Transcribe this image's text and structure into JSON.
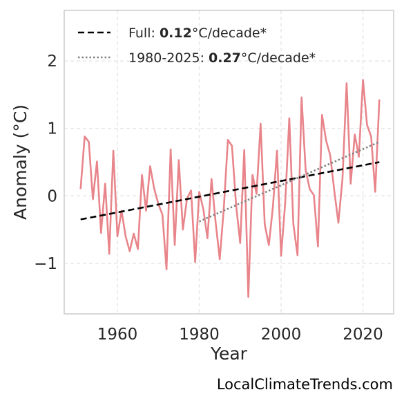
{
  "chart_data": {
    "type": "line",
    "xlabel": "Year",
    "ylabel": "Anomaly (°C)",
    "xlim": [
      1947,
      2027.5
    ],
    "ylim": [
      -1.75,
      2.75
    ],
    "x_ticks": [
      1960,
      1980,
      2000,
      2020
    ],
    "x_tick_labels": [
      "1960",
      "1980",
      "2000",
      "2020"
    ],
    "y_ticks": [
      -1,
      0,
      1,
      2
    ],
    "y_tick_labels": [
      "−1",
      "0",
      "1",
      "2"
    ],
    "grid": true,
    "legend_position": "top-left",
    "series": [
      {
        "kind": "line",
        "color": "#e8858b",
        "x": [
          1951,
          1952,
          1953,
          1954,
          1955,
          1956,
          1957,
          1958,
          1959,
          1960,
          1961,
          1962,
          1963,
          1964,
          1965,
          1966,
          1967,
          1968,
          1969,
          1970,
          1971,
          1972,
          1973,
          1974,
          1975,
          1976,
          1977,
          1978,
          1979,
          1980,
          1981,
          1982,
          1983,
          1984,
          1985,
          1986,
          1987,
          1988,
          1989,
          1990,
          1991,
          1992,
          1993,
          1994,
          1995,
          1996,
          1997,
          1998,
          1999,
          2000,
          2001,
          2002,
          2003,
          2004,
          2005,
          2006,
          2007,
          2008,
          2009,
          2010,
          2011,
          2012,
          2013,
          2014,
          2015,
          2016,
          2017,
          2018,
          2019,
          2020,
          2021,
          2022,
          2023,
          2024
        ],
        "values": [
          0.1,
          0.88,
          0.8,
          -0.05,
          0.51,
          -0.55,
          0.18,
          -0.86,
          0.67,
          -0.6,
          -0.22,
          -0.6,
          -0.82,
          -0.56,
          -0.79,
          0.31,
          -0.22,
          0.44,
          0.1,
          -0.12,
          -0.28,
          -1.09,
          0.69,
          -0.73,
          0.53,
          -0.5,
          -0.04,
          0.08,
          -0.98,
          0.06,
          -0.2,
          -0.63,
          0.25,
          -0.39,
          -0.94,
          -0.18,
          0.83,
          0.74,
          -0.14,
          -0.7,
          0.68,
          -1.5,
          0.31,
          0.03,
          1.07,
          -0.42,
          -0.73,
          -0.16,
          0.67,
          -0.89,
          -0.1,
          1.15,
          -0.42,
          -0.88,
          1.46,
          0.38,
          0.1,
          0.01,
          -0.75,
          1.2,
          0.82,
          0.6,
          0.07,
          -0.4,
          0.25,
          1.67,
          0.18,
          0.91,
          0.58,
          1.72,
          1.05,
          0.88,
          0.06,
          1.43
        ]
      },
      {
        "kind": "trend",
        "name": "Full",
        "color": "#000000",
        "dash": "dashed",
        "x": [
          1951,
          2024
        ],
        "values": [
          -0.35,
          0.5
        ]
      },
      {
        "kind": "trend",
        "name": "1980-2025",
        "color": "#808080",
        "dash": "dotted",
        "x": [
          1980,
          2024
        ],
        "values": [
          -0.38,
          0.8
        ]
      }
    ],
    "legend": [
      {
        "prefix": "Full: ",
        "value": "0.12",
        "suffix": "°C/decade*"
      },
      {
        "prefix": "1980-2025: ",
        "value": "0.27",
        "suffix": "°C/decade*"
      }
    ]
  },
  "footer": {
    "site": "LocalClimateTrends.com"
  }
}
